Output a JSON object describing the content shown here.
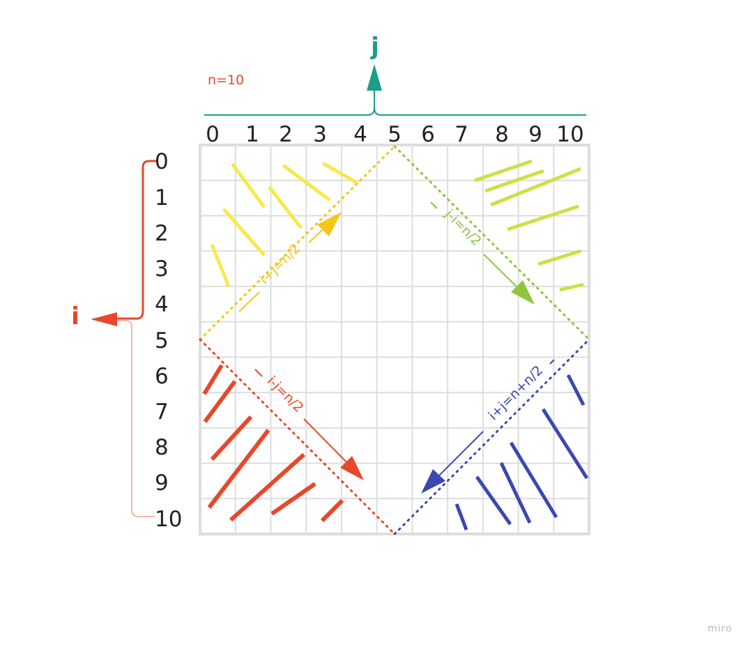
{
  "note": "n=10",
  "axes": {
    "j": {
      "name": "j",
      "ticks": [
        "0",
        "1",
        "2",
        "3",
        "4",
        "5",
        "6",
        "7",
        "8",
        "9",
        "10"
      ]
    },
    "i": {
      "name": "i",
      "ticks": [
        "0",
        "1",
        "2",
        "3",
        "4",
        "5",
        "6",
        "7",
        "8",
        "9",
        "10"
      ]
    }
  },
  "conditions": {
    "top_left": {
      "label": "i+j=n/2",
      "color": "#f5c518"
    },
    "top_right": {
      "label": "j-i=n/2",
      "color": "#8cc63f"
    },
    "bottom_left": {
      "label": "i-j=n/2",
      "color": "#e8472b"
    },
    "bottom_right": {
      "label": "i+j=n+n/2",
      "color": "#3b48b0"
    }
  },
  "colors": {
    "j_axis": "#1a9e86",
    "i_axis": "#e8472b",
    "grid": "#dddddd",
    "hatch_top_left": "#f7e94a",
    "hatch_top_right": "#cde046",
    "hatch_bottom_left": "#e8472b",
    "hatch_bottom_right": "#3b48b0"
  },
  "brand": "miro"
}
